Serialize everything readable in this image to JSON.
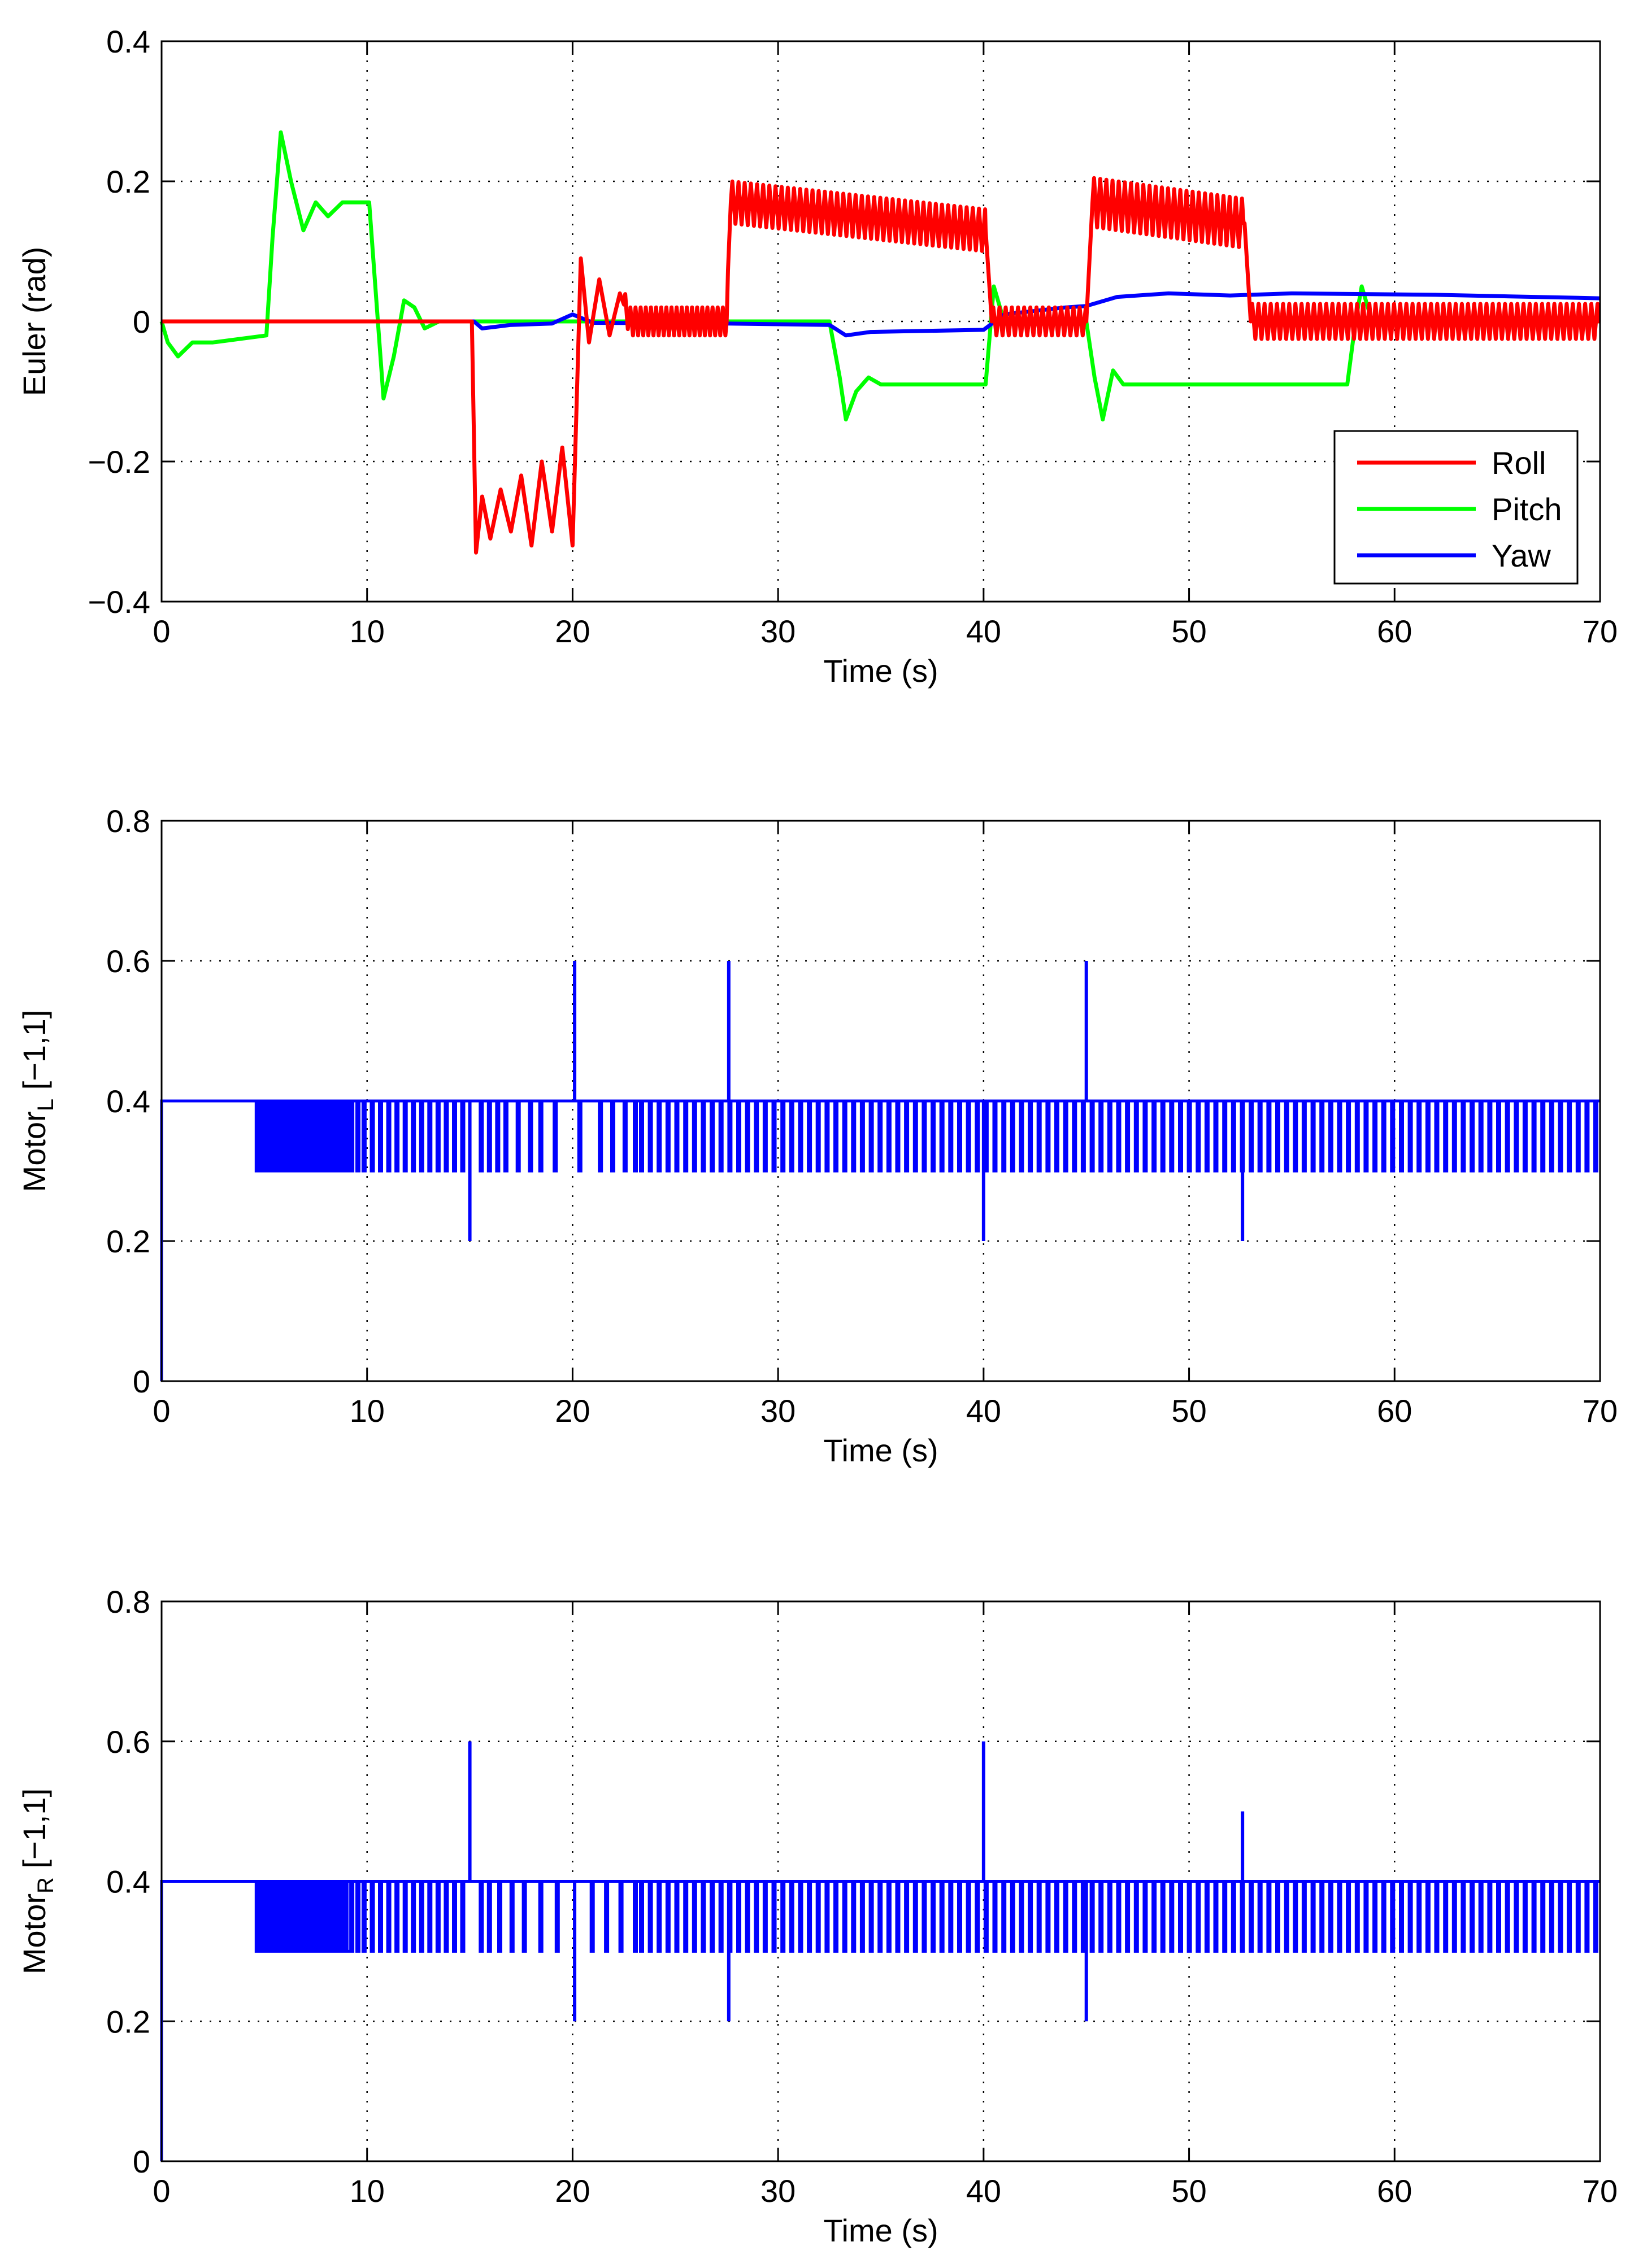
{
  "chart_data": [
    {
      "type": "line",
      "title": "",
      "xlabel": "Time (s)",
      "ylabel": "Euler (rad)",
      "xlim": [
        0,
        70
      ],
      "ylim": [
        -0.4,
        0.4
      ],
      "xticks": [
        0,
        10,
        20,
        30,
        40,
        50,
        60,
        70
      ],
      "yticks": [
        -0.4,
        -0.2,
        0,
        0.2,
        0.4
      ],
      "ytick_labels": [
        "−0.4",
        "−0.2",
        "0",
        "0.2",
        "0.4"
      ],
      "grid": true,
      "legend_position": "bottom-right",
      "series": [
        {
          "name": "Roll",
          "color": "#ff0000",
          "shape": "piecewise with oscillation",
          "points": [
            [
              0,
              0
            ],
            [
              15.1,
              0
            ],
            [
              15.3,
              -0.33
            ],
            [
              15.6,
              -0.25
            ],
            [
              16,
              -0.31
            ],
            [
              16.5,
              -0.24
            ],
            [
              17,
              -0.3
            ],
            [
              17.5,
              -0.22
            ],
            [
              18,
              -0.32
            ],
            [
              18.5,
              -0.2
            ],
            [
              19,
              -0.3
            ],
            [
              19.5,
              -0.18
            ],
            [
              20,
              -0.32
            ],
            [
              20.4,
              0.09
            ],
            [
              20.8,
              -0.03
            ],
            [
              21.3,
              0.06
            ],
            [
              21.8,
              -0.02
            ],
            [
              22.3,
              0.04
            ],
            [
              22.8,
              0
            ],
            [
              27.5,
              0
            ],
            [
              27.7,
              0.17
            ],
            [
              40.1,
              0.13
            ],
            [
              40.4,
              0
            ],
            [
              45.0,
              0
            ],
            [
              45.3,
              0.17
            ],
            [
              52.7,
              0.14
            ],
            [
              53.0,
              0
            ],
            [
              70,
              0
            ]
          ],
          "oscillation": [
            [
              22.5,
              27.6,
              0.02,
              0.25
            ],
            [
              27.7,
              40.1,
              0.03,
              0.3
            ],
            [
              40.4,
              45.0,
              0.02,
              0.3
            ],
            [
              45.3,
              52.7,
              0.035,
              0.3
            ],
            [
              53.0,
              70,
              0.025,
              0.3
            ]
          ]
        },
        {
          "name": "Pitch",
          "color": "#00ff00",
          "shape": "step responses",
          "points": [
            [
              0,
              0
            ],
            [
              0.3,
              -0.03
            ],
            [
              0.8,
              -0.05
            ],
            [
              1.5,
              -0.03
            ],
            [
              2.5,
              -0.03
            ],
            [
              5.1,
              -0.02
            ],
            [
              5.4,
              0.12
            ],
            [
              5.8,
              0.27
            ],
            [
              6.3,
              0.2
            ],
            [
              6.9,
              0.13
            ],
            [
              7.5,
              0.17
            ],
            [
              8.1,
              0.15
            ],
            [
              8.8,
              0.17
            ],
            [
              10.1,
              0.17
            ],
            [
              10.4,
              0.05
            ],
            [
              10.8,
              -0.11
            ],
            [
              11.3,
              -0.05
            ],
            [
              11.8,
              0.03
            ],
            [
              12.3,
              0.02
            ],
            [
              12.8,
              -0.01
            ],
            [
              13.5,
              0
            ],
            [
              32.5,
              0
            ],
            [
              33,
              -0.08
            ],
            [
              33.3,
              -0.14
            ],
            [
              33.8,
              -0.1
            ],
            [
              34.4,
              -0.08
            ],
            [
              35,
              -0.09
            ],
            [
              40.1,
              -0.09
            ],
            [
              40.5,
              0.05
            ],
            [
              41.0,
              0
            ],
            [
              45,
              0
            ],
            [
              45.4,
              -0.08
            ],
            [
              45.8,
              -0.14
            ],
            [
              46.3,
              -0.07
            ],
            [
              46.8,
              -0.09
            ],
            [
              57.7,
              -0.09
            ],
            [
              58.1,
              0
            ],
            [
              58.4,
              0.05
            ],
            [
              58.9,
              0
            ],
            [
              70,
              0
            ]
          ]
        },
        {
          "name": "Yaw",
          "color": "#0000ff",
          "shape": "slow drift",
          "points": [
            [
              0,
              0
            ],
            [
              15.2,
              0
            ],
            [
              15.6,
              -0.01
            ],
            [
              17,
              -0.005
            ],
            [
              19,
              -0.003
            ],
            [
              20,
              0.01
            ],
            [
              21,
              -0.002
            ],
            [
              27.5,
              -0.003
            ],
            [
              32.5,
              -0.005
            ],
            [
              33.3,
              -0.02
            ],
            [
              34.5,
              -0.015
            ],
            [
              40,
              -0.012
            ],
            [
              41,
              0.01
            ],
            [
              44,
              0.02
            ],
            [
              45,
              0.022
            ],
            [
              46.5,
              0.035
            ],
            [
              49,
              0.04
            ],
            [
              52,
              0.037
            ],
            [
              55,
              0.04
            ],
            [
              62,
              0.038
            ],
            [
              70,
              0.033
            ]
          ]
        }
      ]
    },
    {
      "type": "line",
      "title": "",
      "xlabel": "Time (s)",
      "ylabel": "Motor",
      "ylabel_sub": "L",
      "ylabel_suffix": " [−1,1]",
      "xlim": [
        0,
        70
      ],
      "ylim": [
        0,
        0.8
      ],
      "xticks": [
        0,
        10,
        20,
        30,
        40,
        50,
        60,
        70
      ],
      "yticks": [
        0,
        0.2,
        0.4,
        0.6,
        0.8
      ],
      "ytick_labels": [
        "0",
        "0.2",
        "0.4",
        "0.6",
        "0.8"
      ],
      "grid": true,
      "series": [
        {
          "name": "Motor L",
          "color": "#0000ff",
          "shape": "square wave between 0.3 and 0.4 with spikes",
          "start": [
            [
              0,
              0
            ],
            [
              0.05,
              0.4
            ]
          ],
          "baseline": 0.4,
          "low": 0.3,
          "dense_from": 4.6,
          "dense_to": 9.1,
          "dense_period": 0.09,
          "sparse_dips": [
            9.2,
            9.5,
            9.8,
            10.2,
            10.6,
            11.0,
            11.4,
            11.8,
            12.2,
            12.6,
            13.0,
            13.4,
            13.8,
            14.2,
            14.6,
            15.5,
            15.9,
            16.3,
            16.7,
            17.3,
            17.9,
            18.4,
            19.1,
            20.3,
            21.3,
            21.9,
            22.5,
            23.0
          ],
          "regular_from": 23.3,
          "regular_period": 0.43,
          "spikes": [
            [
              15.0,
              0.2
            ],
            [
              20.1,
              0.6
            ],
            [
              27.6,
              0.6
            ],
            [
              40.0,
              0.2
            ],
            [
              45.0,
              0.6
            ],
            [
              52.6,
              0.2
            ]
          ]
        }
      ]
    },
    {
      "type": "line",
      "title": "",
      "xlabel": "Time (s)",
      "ylabel": "Motor",
      "ylabel_sub": "R",
      "ylabel_suffix": " [−1,1]",
      "xlim": [
        0,
        70
      ],
      "ylim": [
        0,
        0.8
      ],
      "xticks": [
        0,
        10,
        20,
        30,
        40,
        50,
        60,
        70
      ],
      "yticks": [
        0,
        0.2,
        0.4,
        0.6,
        0.8
      ],
      "ytick_labels": [
        "0",
        "0.2",
        "0.4",
        "0.6",
        "0.8"
      ],
      "grid": true,
      "series": [
        {
          "name": "Motor R",
          "color": "#0000ff",
          "shape": "square wave between 0.3 and 0.4 with spikes",
          "start": [
            [
              0,
              0
            ],
            [
              0.05,
              0.4
            ]
          ],
          "baseline": 0.4,
          "low": 0.3,
          "dense_from": 4.6,
          "dense_to": 9.0,
          "dense_period": 0.09,
          "sparse_dips": [
            9.2,
            9.5,
            9.8,
            10.2,
            10.6,
            11.0,
            11.4,
            11.8,
            12.2,
            12.6,
            13.0,
            13.4,
            13.8,
            14.2,
            14.6,
            15.5,
            15.9,
            16.4,
            17.0,
            17.6,
            18.4,
            19.2,
            20.9,
            21.6,
            22.3,
            23.0
          ],
          "regular_from": 23.3,
          "regular_period": 0.43,
          "spikes": [
            [
              15.0,
              0.6
            ],
            [
              20.1,
              0.2
            ],
            [
              27.6,
              0.2
            ],
            [
              40.0,
              0.6
            ],
            [
              45.0,
              0.2
            ],
            [
              52.6,
              0.5
            ]
          ]
        }
      ]
    }
  ]
}
